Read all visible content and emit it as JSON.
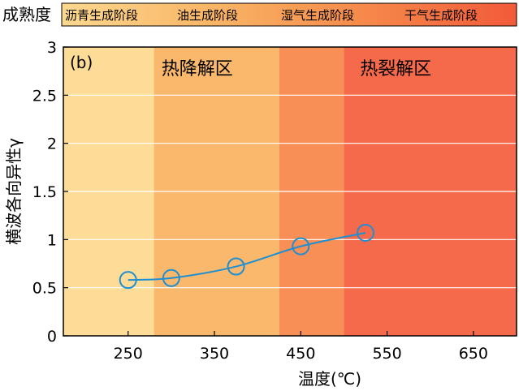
{
  "maturity_bar": {
    "label": "成熟度",
    "stages": [
      {
        "label": "沥青生成阶段",
        "color": "#fcd88f"
      },
      {
        "label": "油生成阶段",
        "color": "#f9b565"
      },
      {
        "label": "湿气生成阶段",
        "color": "#f6894a"
      },
      {
        "label": "干气生成阶段",
        "color": "#f15a3a"
      }
    ]
  },
  "colors": {
    "line": "#1f8fd1",
    "marker": "#1f8fd1",
    "grid": "#ffffff",
    "axis": "#000000"
  },
  "chart_data": {
    "type": "line",
    "panel_label": "(b)",
    "xlabel": "温度(℃)",
    "ylabel": "横波各向异性γ",
    "xlim": [
      175,
      700
    ],
    "ylim": [
      0,
      3
    ],
    "xticks": [
      250,
      350,
      450,
      550,
      650
    ],
    "yticks": [
      0,
      0.5,
      1,
      1.5,
      2,
      2.5,
      3
    ],
    "grid": "horizontal",
    "series": [
      {
        "x": [
          250,
          300,
          375,
          450,
          525
        ],
        "y": [
          0.58,
          0.6,
          0.72,
          0.93,
          1.07
        ]
      }
    ],
    "regions": [
      {
        "x0": 175,
        "x1": 280,
        "color": "#fcdc96"
      },
      {
        "x0": 280,
        "x1": 425,
        "color": "#f9b86b"
      },
      {
        "x0": 425,
        "x1": 500,
        "color": "#f88f56"
      },
      {
        "x0": 500,
        "x1": 700,
        "color": "#f56a4a"
      }
    ],
    "zone_labels": [
      {
        "text": "热降解区",
        "x": 330
      },
      {
        "text": "热裂解区",
        "x": 560
      }
    ]
  }
}
